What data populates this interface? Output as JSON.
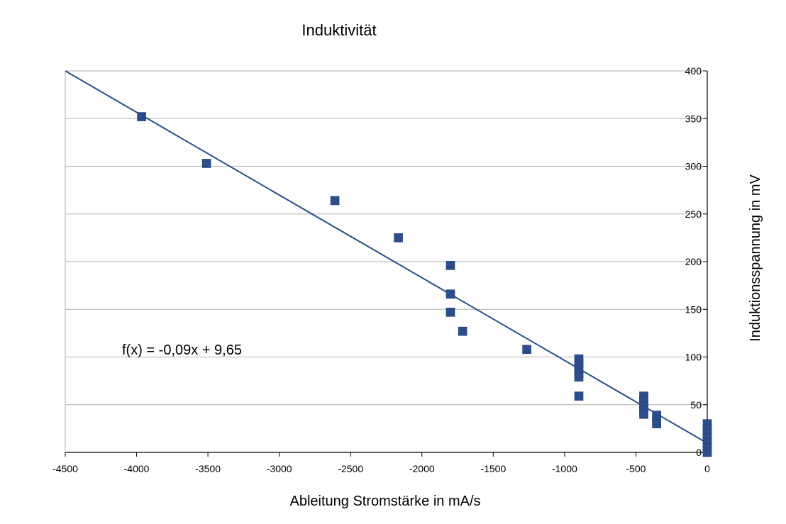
{
  "chart_data": {
    "type": "scatter",
    "title": "Induktivität",
    "xlabel": "Ableitung Stromstärke in mA/s",
    "ylabel": "Induktionsspannung in mV",
    "xlim": [
      -4500,
      0
    ],
    "ylim": [
      0,
      400
    ],
    "x_ticks": [
      -4500,
      -4000,
      -3500,
      -3000,
      -2500,
      -2000,
      -1500,
      -1000,
      -500,
      0
    ],
    "y_ticks": [
      0,
      50,
      100,
      150,
      200,
      250,
      300,
      350,
      400
    ],
    "grid": "horizontal",
    "y_axis_position": "right",
    "marker_color": "#2b4f8e",
    "line_color": "#2b4f8e",
    "grid_color": "#b0b0b0",
    "trendline": {
      "slope": -0.09,
      "intercept": 9.65,
      "label": "f(x) = -0,09x + 9,65"
    },
    "points": [
      {
        "x": -3965,
        "y": 352
      },
      {
        "x": -3510,
        "y": 303
      },
      {
        "x": -2610,
        "y": 264
      },
      {
        "x": -2165,
        "y": 225
      },
      {
        "x": -1800,
        "y": 196
      },
      {
        "x": -1800,
        "y": 166
      },
      {
        "x": -1800,
        "y": 147
      },
      {
        "x": -1715,
        "y": 127
      },
      {
        "x": -1265,
        "y": 108
      },
      {
        "x": -900,
        "y": 98
      },
      {
        "x": -900,
        "y": 93
      },
      {
        "x": -900,
        "y": 88
      },
      {
        "x": -900,
        "y": 83
      },
      {
        "x": -900,
        "y": 79
      },
      {
        "x": -900,
        "y": 59
      },
      {
        "x": -445,
        "y": 59
      },
      {
        "x": -445,
        "y": 54
      },
      {
        "x": -445,
        "y": 49
      },
      {
        "x": -445,
        "y": 44
      },
      {
        "x": -445,
        "y": 40
      },
      {
        "x": -355,
        "y": 39
      },
      {
        "x": -355,
        "y": 34
      },
      {
        "x": -355,
        "y": 30
      },
      {
        "x": 0,
        "y": 30
      },
      {
        "x": 0,
        "y": 25
      },
      {
        "x": 0,
        "y": 20
      },
      {
        "x": 0,
        "y": 15
      },
      {
        "x": 0,
        "y": 10
      },
      {
        "x": 0,
        "y": 5
      },
      {
        "x": 0,
        "y": 0
      }
    ]
  }
}
